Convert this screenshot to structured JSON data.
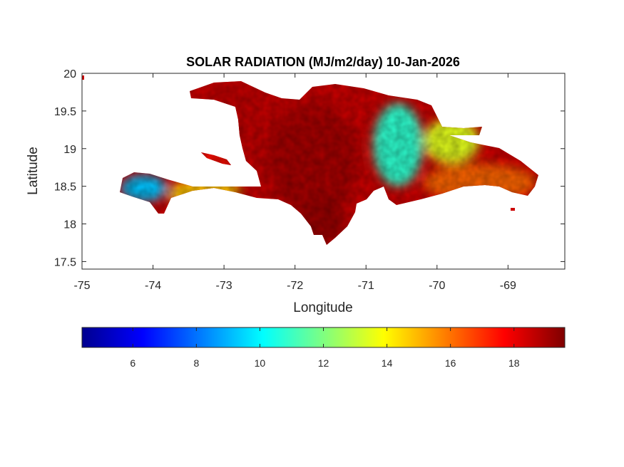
{
  "chart_data": {
    "type": "heatmap",
    "title": "SOLAR RADIATION (MJ/m2/day) 10-Jan-2026",
    "xlabel": "Longitude",
    "ylabel": "Latitude",
    "xlim": [
      -75,
      -68.2
    ],
    "ylim": [
      17.4,
      20
    ],
    "x_ticks": [
      -75,
      -74,
      -73,
      -72,
      -71,
      -70,
      -69
    ],
    "x_tick_labels": [
      "-75",
      "-74",
      "-73",
      "-72",
      "-71",
      "-70",
      "-69"
    ],
    "y_ticks": [
      17.5,
      18,
      18.5,
      19,
      19.5,
      20
    ],
    "y_tick_labels": [
      "17.5",
      "18",
      "18.5",
      "19",
      "19.5",
      "20"
    ],
    "colorbar": {
      "colormap": "jet",
      "orientation": "horizontal",
      "placement": "below-plot",
      "range": [
        4.4,
        19.6
      ],
      "ticks": [
        6,
        8,
        10,
        12,
        14,
        16,
        18
      ],
      "tick_labels": [
        "6",
        "8",
        "10",
        "12",
        "14",
        "16",
        "18"
      ]
    },
    "regions": [
      {
        "name": "",
        "lon": [
          -72.4,
          -71.1
        ],
        "lat": [
          18.1,
          19.6
        ],
        "value": 19.0
      },
      {
        "name": "",
        "lon": [
          -73.4,
          -72.4
        ],
        "lat": [
          18.4,
          19.9
        ],
        "value": 18.6
      },
      {
        "name": "",
        "lon": [
          -71.9,
          -71.3
        ],
        "lat": [
          17.7,
          18.4
        ],
        "value": 19.2
      },
      {
        "name": "",
        "lon": [
          -70.9,
          -70.2
        ],
        "lat": [
          18.5,
          19.6
        ],
        "value": 10.8
      },
      {
        "name": "",
        "lon": [
          -70.2,
          -69.4
        ],
        "lat": [
          18.8,
          19.4
        ],
        "value": 13.5
      },
      {
        "name": "",
        "lon": [
          -70.2,
          -68.6
        ],
        "lat": [
          18.3,
          18.8
        ],
        "value": 16.2
      },
      {
        "name": "",
        "lon": [
          -74.45,
          -73.8
        ],
        "lat": [
          18.3,
          18.65
        ],
        "value": 9.2
      },
      {
        "name": "",
        "lon": [
          -73.8,
          -72.8
        ],
        "lat": [
          18.2,
          18.6
        ],
        "value": 14.8
      },
      {
        "name": "",
        "lon": [
          -73.4,
          -72.9
        ],
        "lat": [
          18.75,
          18.95
        ],
        "value": 17.5
      }
    ]
  }
}
